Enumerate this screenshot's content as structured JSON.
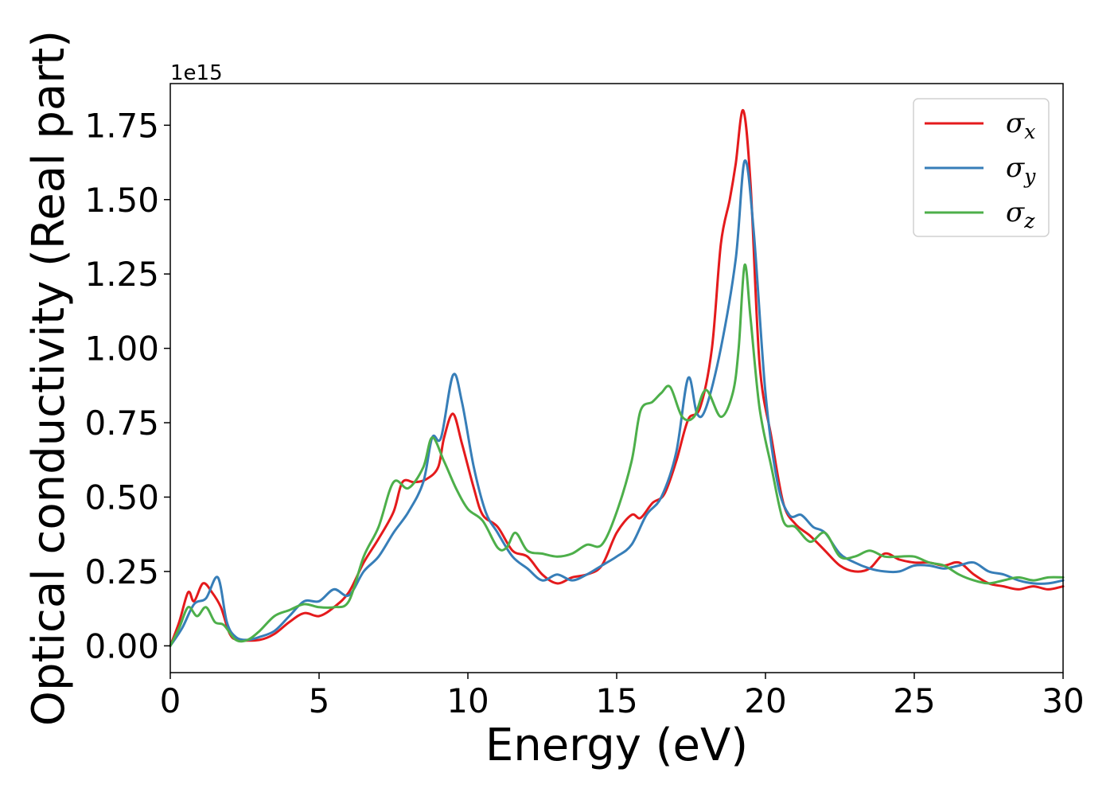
{
  "chart_data": {
    "type": "line",
    "xlabel": "Energy (eV)",
    "ylabel": "Optical conductivity (Real part)",
    "y_offset_text": "1e15",
    "xlim": [
      0,
      30
    ],
    "ylim": [
      -0.09,
      1.89
    ],
    "xticks": [
      0,
      5,
      10,
      15,
      20,
      25,
      30
    ],
    "yticks": [
      0.0,
      0.25,
      0.5,
      0.75,
      1.0,
      1.25,
      1.5,
      1.75
    ],
    "ytick_labels": [
      "0.00",
      "0.25",
      "0.50",
      "0.75",
      "1.00",
      "1.25",
      "1.50",
      "1.75"
    ],
    "grid": false,
    "legend_position": "top-right",
    "series": [
      {
        "name": "σx",
        "name_base": "σ",
        "name_sub": "x",
        "color": "#e41a1c",
        "x": [
          0,
          0.3,
          0.6,
          0.8,
          1.1,
          1.4,
          1.7,
          2.0,
          2.3,
          3.0,
          3.5,
          4.0,
          4.5,
          5.0,
          5.5,
          6.0,
          6.5,
          7.0,
          7.5,
          7.8,
          8.2,
          8.6,
          9.0,
          9.2,
          9.5,
          9.8,
          10.2,
          10.5,
          11.0,
          11.5,
          12.0,
          12.5,
          13.0,
          13.5,
          14.0,
          14.5,
          15.0,
          15.5,
          15.8,
          16.2,
          16.6,
          17.0,
          17.4,
          17.8,
          18.2,
          18.5,
          18.8,
          19.0,
          19.25,
          19.5,
          19.8,
          20.2,
          20.6,
          21.0,
          21.5,
          22.0,
          22.5,
          23.0,
          23.5,
          24.0,
          24.5,
          25.0,
          25.5,
          26.0,
          26.5,
          27.0,
          27.5,
          28.0,
          28.5,
          29.0,
          29.5,
          30.0
        ],
        "y": [
          0.0,
          0.08,
          0.18,
          0.15,
          0.21,
          0.18,
          0.13,
          0.04,
          0.02,
          0.02,
          0.04,
          0.08,
          0.11,
          0.1,
          0.13,
          0.18,
          0.28,
          0.36,
          0.45,
          0.55,
          0.55,
          0.56,
          0.6,
          0.7,
          0.78,
          0.68,
          0.53,
          0.44,
          0.4,
          0.32,
          0.3,
          0.24,
          0.21,
          0.23,
          0.24,
          0.27,
          0.38,
          0.44,
          0.43,
          0.48,
          0.51,
          0.62,
          0.76,
          0.8,
          1.0,
          1.35,
          1.5,
          1.62,
          1.8,
          1.55,
          0.95,
          0.7,
          0.48,
          0.41,
          0.37,
          0.32,
          0.27,
          0.25,
          0.26,
          0.31,
          0.29,
          0.28,
          0.28,
          0.27,
          0.28,
          0.24,
          0.21,
          0.2,
          0.19,
          0.2,
          0.19,
          0.2
        ]
      },
      {
        "name": "σy",
        "name_base": "σ",
        "name_sub": "y",
        "color": "#377eb8",
        "x": [
          0,
          0.4,
          0.8,
          1.2,
          1.6,
          1.9,
          2.2,
          2.6,
          3.0,
          3.5,
          4.0,
          4.5,
          5.0,
          5.5,
          6.0,
          6.5,
          7.0,
          7.5,
          8.0,
          8.5,
          8.8,
          9.1,
          9.5,
          9.8,
          10.2,
          10.6,
          11.0,
          11.5,
          12.0,
          12.5,
          13.0,
          13.5,
          14.0,
          14.5,
          15.0,
          15.5,
          16.0,
          16.5,
          17.0,
          17.4,
          17.7,
          18.0,
          18.5,
          19.0,
          19.3,
          19.6,
          20.0,
          20.4,
          20.8,
          21.2,
          21.6,
          22.0,
          22.5,
          23.0,
          23.5,
          24.0,
          24.5,
          25.0,
          25.5,
          26.0,
          26.5,
          27.0,
          27.5,
          28.0,
          28.5,
          29.0,
          29.5,
          30.0
        ],
        "y": [
          0.0,
          0.06,
          0.14,
          0.16,
          0.23,
          0.08,
          0.03,
          0.02,
          0.03,
          0.05,
          0.1,
          0.15,
          0.15,
          0.19,
          0.17,
          0.25,
          0.3,
          0.38,
          0.45,
          0.55,
          0.7,
          0.7,
          0.91,
          0.82,
          0.6,
          0.45,
          0.38,
          0.3,
          0.26,
          0.22,
          0.24,
          0.22,
          0.24,
          0.27,
          0.3,
          0.34,
          0.44,
          0.5,
          0.65,
          0.9,
          0.78,
          0.8,
          1.0,
          1.3,
          1.63,
          1.4,
          0.85,
          0.55,
          0.44,
          0.44,
          0.4,
          0.38,
          0.31,
          0.28,
          0.26,
          0.25,
          0.25,
          0.27,
          0.27,
          0.26,
          0.27,
          0.28,
          0.25,
          0.24,
          0.22,
          0.21,
          0.21,
          0.22
        ]
      },
      {
        "name": "σz",
        "name_base": "σ",
        "name_sub": "z",
        "color": "#4daf4a",
        "x": [
          0,
          0.3,
          0.6,
          0.9,
          1.2,
          1.5,
          1.8,
          2.2,
          2.6,
          3.0,
          3.5,
          4.0,
          4.5,
          5.0,
          5.5,
          6.0,
          6.5,
          7.0,
          7.5,
          8.0,
          8.5,
          8.8,
          9.2,
          9.6,
          10.0,
          10.5,
          11.0,
          11.3,
          11.6,
          12.0,
          12.5,
          13.0,
          13.5,
          14.0,
          14.5,
          15.0,
          15.5,
          15.8,
          16.2,
          16.5,
          16.8,
          17.2,
          17.6,
          18.0,
          18.5,
          18.9,
          19.1,
          19.3,
          19.5,
          19.8,
          20.2,
          20.6,
          21.0,
          21.5,
          22.0,
          22.5,
          23.0,
          23.5,
          24.0,
          24.5,
          25.0,
          25.5,
          26.0,
          26.5,
          27.0,
          27.5,
          28.0,
          28.5,
          29.0,
          29.5,
          30.0
        ],
        "y": [
          0.0,
          0.06,
          0.13,
          0.1,
          0.13,
          0.08,
          0.07,
          0.02,
          0.02,
          0.05,
          0.1,
          0.12,
          0.14,
          0.13,
          0.13,
          0.15,
          0.3,
          0.4,
          0.55,
          0.53,
          0.6,
          0.7,
          0.62,
          0.53,
          0.46,
          0.42,
          0.33,
          0.33,
          0.38,
          0.32,
          0.31,
          0.3,
          0.31,
          0.34,
          0.34,
          0.45,
          0.62,
          0.79,
          0.82,
          0.85,
          0.87,
          0.77,
          0.77,
          0.86,
          0.77,
          0.85,
          1.0,
          1.28,
          1.1,
          0.8,
          0.6,
          0.42,
          0.4,
          0.35,
          0.38,
          0.3,
          0.3,
          0.32,
          0.3,
          0.3,
          0.3,
          0.28,
          0.27,
          0.24,
          0.22,
          0.21,
          0.22,
          0.23,
          0.22,
          0.23,
          0.23
        ]
      }
    ]
  }
}
